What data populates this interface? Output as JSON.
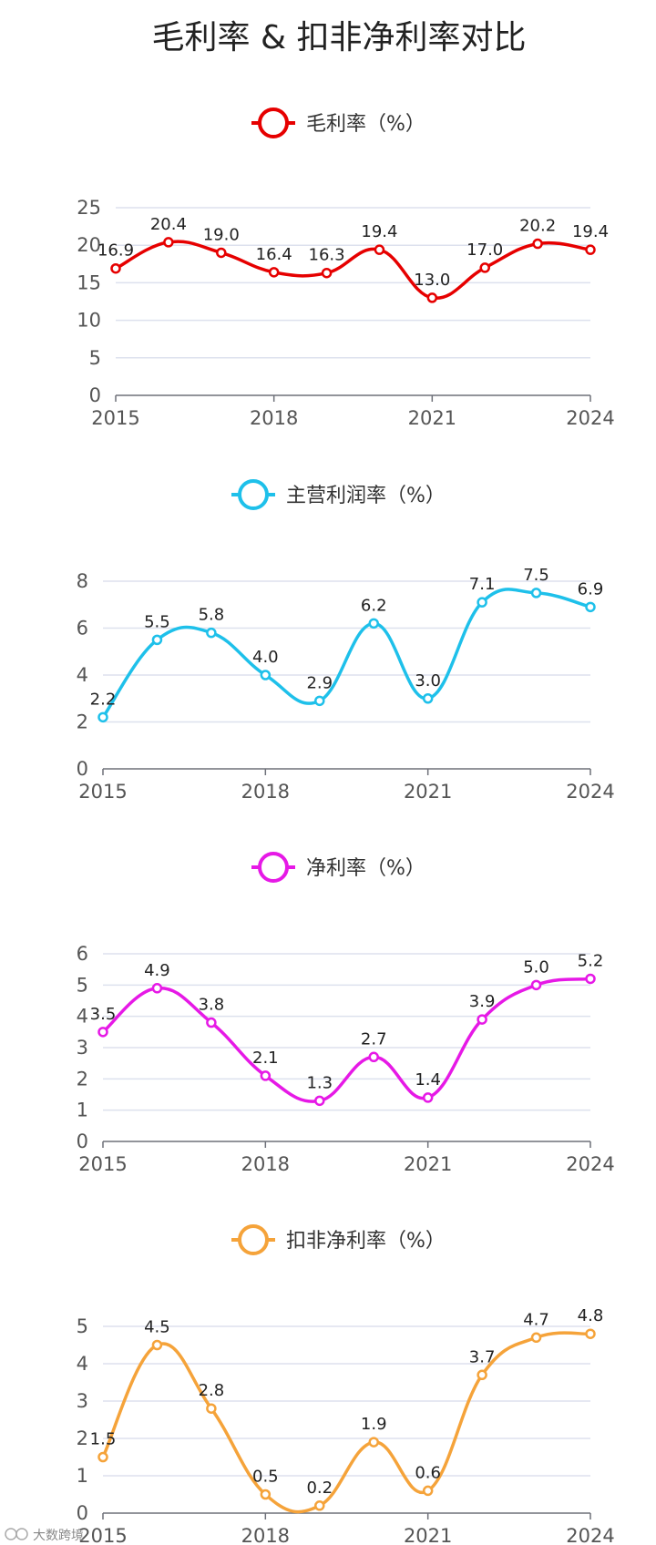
{
  "title": "毛利率 & 扣非净利率对比",
  "watermark": "大数跨境",
  "chart_data": [
    {
      "type": "line",
      "legend": "毛利率（%）",
      "color": "#e60000",
      "x": [
        2015,
        2016,
        2017,
        2018,
        2019,
        2020,
        2021,
        2022,
        2023,
        2024
      ],
      "values": [
        16.9,
        20.4,
        19.0,
        16.4,
        16.3,
        19.4,
        13.0,
        17.0,
        20.2,
        19.4
      ],
      "xticks": [
        "2015",
        "2018",
        "2021",
        "2024"
      ],
      "yticks": [
        "0",
        "5",
        "10",
        "15",
        "20",
        "25"
      ],
      "ylim": [
        0,
        25
      ],
      "grid": true
    },
    {
      "type": "line",
      "legend": "主营利润率（%）",
      "color": "#1ec0ea",
      "x": [
        2015,
        2016,
        2017,
        2018,
        2019,
        2020,
        2021,
        2022,
        2023,
        2024
      ],
      "values": [
        2.2,
        5.5,
        5.8,
        4.0,
        2.9,
        6.2,
        3.0,
        7.1,
        7.5,
        6.9
      ],
      "xticks": [
        "2015",
        "2018",
        "2021",
        "2024"
      ],
      "yticks": [
        "0",
        "2",
        "4",
        "6",
        "8"
      ],
      "ylim": [
        0,
        8
      ],
      "grid": true
    },
    {
      "type": "line",
      "legend": "净利率（%）",
      "color": "#e619e6",
      "x": [
        2015,
        2016,
        2017,
        2018,
        2019,
        2020,
        2021,
        2022,
        2023,
        2024
      ],
      "values": [
        3.5,
        4.9,
        3.8,
        2.1,
        1.3,
        2.7,
        1.4,
        3.9,
        5.0,
        5.2
      ],
      "xticks": [
        "2015",
        "2018",
        "2021",
        "2024"
      ],
      "yticks": [
        "0",
        "1",
        "2",
        "3",
        "4",
        "5",
        "6"
      ],
      "ylim": [
        0,
        6
      ],
      "grid": true
    },
    {
      "type": "line",
      "legend": "扣非净利率（%）",
      "color": "#f5a33a",
      "x": [
        2015,
        2016,
        2017,
        2018,
        2019,
        2020,
        2021,
        2022,
        2023,
        2024
      ],
      "values": [
        1.5,
        4.5,
        2.8,
        0.5,
        0.2,
        1.9,
        0.6,
        3.7,
        4.7,
        4.8
      ],
      "xticks": [
        "2015",
        "2018",
        "2021",
        "2024"
      ],
      "yticks": [
        "0",
        "1",
        "2",
        "3",
        "4",
        "5"
      ],
      "ylim": [
        0,
        5
      ],
      "grid": true
    }
  ]
}
